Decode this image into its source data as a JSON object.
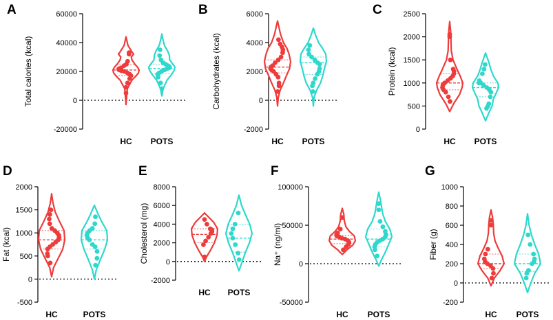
{
  "colors": {
    "hc": "#ee3b3b",
    "pots": "#2ed8cc",
    "axis": "#000000"
  },
  "chart_data": [
    {
      "type": "violin",
      "letter": "A",
      "ylabel": "Total calories (kcal)",
      "ylim": [
        -20000,
        60000
      ],
      "yticks": [
        -20000,
        0,
        20000,
        40000,
        60000
      ],
      "ytick_labels": [
        "-20000",
        "0",
        "20000",
        "40000",
        "60000"
      ],
      "categories": [
        "HC",
        "POTS"
      ],
      "series": [
        {
          "name": "HC",
          "median": 21000,
          "q1": 17000,
          "q3": 24500,
          "profile": [
            [
              -3000,
              0
            ],
            [
              2000,
              0.04
            ],
            [
              8000,
              0.1
            ],
            [
              14000,
              0.45
            ],
            [
              17000,
              0.78
            ],
            [
              19000,
              0.95
            ],
            [
              21000,
              1.0
            ],
            [
              23000,
              0.88
            ],
            [
              25000,
              0.68
            ],
            [
              28000,
              0.45
            ],
            [
              30000,
              0.4
            ],
            [
              32000,
              0.58
            ],
            [
              34000,
              0.42
            ],
            [
              38000,
              0.15
            ],
            [
              44000,
              0
            ]
          ],
          "points": [
            5000,
            9000,
            12000,
            15000,
            17000,
            18000,
            19000,
            20000,
            20500,
            21000,
            21500,
            22000,
            22500,
            24000,
            25000,
            27000,
            32000,
            33000
          ]
        },
        {
          "name": "POTS",
          "median": 22000,
          "q1": 18500,
          "q3": 24500,
          "profile": [
            [
              3000,
              0
            ],
            [
              8000,
              0.1
            ],
            [
              14000,
              0.4
            ],
            [
              18000,
              0.75
            ],
            [
              21000,
              0.95
            ],
            [
              23000,
              1.0
            ],
            [
              25000,
              0.85
            ],
            [
              28000,
              0.6
            ],
            [
              31000,
              0.58
            ],
            [
              34000,
              0.45
            ],
            [
              38000,
              0.2
            ],
            [
              43000,
              0.06
            ],
            [
              46000,
              0
            ]
          ],
          "points": [
            8000,
            12000,
            16000,
            18000,
            19000,
            20000,
            21000,
            22000,
            22500,
            23000,
            24000,
            25000,
            26000,
            28000,
            31000,
            35000
          ]
        }
      ]
    },
    {
      "type": "violin",
      "letter": "B",
      "ylabel": "Carbohydrates (kcal)",
      "ylim": [
        -2000,
        6000
      ],
      "yticks": [
        -2000,
        0,
        2000,
        4000,
        6000
      ],
      "ytick_labels": [
        "-2000",
        "0",
        "2000",
        "4000",
        "6000"
      ],
      "categories": [
        "HC",
        "POTS"
      ],
      "series": [
        {
          "name": "HC",
          "median": 2300,
          "q1": 1900,
          "q3": 2800,
          "profile": [
            [
              -400,
              0
            ],
            [
              200,
              0.06
            ],
            [
              700,
              0.2
            ],
            [
              1200,
              0.45
            ],
            [
              1700,
              0.68
            ],
            [
              2200,
              0.92
            ],
            [
              2700,
              1.0
            ],
            [
              3200,
              0.88
            ],
            [
              3600,
              0.72
            ],
            [
              4000,
              0.45
            ],
            [
              4600,
              0.22
            ],
            [
              5100,
              0.1
            ],
            [
              5500,
              0
            ]
          ],
          "points": [
            600,
            1000,
            1200,
            1600,
            1800,
            2000,
            2100,
            2200,
            2300,
            2400,
            2600,
            2800,
            3000,
            3300,
            3500,
            3700,
            3900,
            4200
          ]
        },
        {
          "name": "POTS",
          "median": 2600,
          "q1": 1800,
          "q3": 3000,
          "profile": [
            [
              -400,
              0
            ],
            [
              200,
              0.06
            ],
            [
              700,
              0.25
            ],
            [
              1200,
              0.55
            ],
            [
              1700,
              0.72
            ],
            [
              2200,
              0.85
            ],
            [
              2700,
              1.0
            ],
            [
              3200,
              0.95
            ],
            [
              3600,
              0.7
            ],
            [
              4000,
              0.4
            ],
            [
              4500,
              0.18
            ],
            [
              5000,
              0
            ]
          ],
          "points": [
            600,
            1000,
            1200,
            1500,
            1800,
            2000,
            2200,
            2500,
            2600,
            2800,
            3000,
            3200,
            3500,
            3800
          ]
        }
      ]
    },
    {
      "type": "violin",
      "letter": "C",
      "ylabel": "Protein (kcal)",
      "ylim": [
        0,
        2500
      ],
      "yticks": [
        0,
        500,
        1000,
        1500,
        2000,
        2500
      ],
      "ytick_labels": [
        "0",
        "500",
        "1000",
        "1500",
        "2000",
        "2500"
      ],
      "categories": [
        "HC",
        "POTS"
      ],
      "series": [
        {
          "name": "HC",
          "median": 1000,
          "q1": 850,
          "q3": 1200,
          "profile": [
            [
              380,
              0
            ],
            [
              550,
              0.3
            ],
            [
              750,
              0.75
            ],
            [
              900,
              0.95
            ],
            [
              1000,
              1.0
            ],
            [
              1150,
              0.8
            ],
            [
              1300,
              0.55
            ],
            [
              1500,
              0.25
            ],
            [
              1700,
              0.12
            ],
            [
              1900,
              0.1
            ],
            [
              2100,
              0.08
            ],
            [
              2330,
              0
            ]
          ],
          "points": [
            600,
            700,
            800,
            850,
            900,
            950,
            1000,
            1050,
            1100,
            1150,
            1200,
            1250,
            1300,
            1500,
            2000,
            2050
          ]
        },
        {
          "name": "POTS",
          "median": 900,
          "q1": 700,
          "q3": 1000,
          "profile": [
            [
              180,
              0
            ],
            [
              350,
              0.25
            ],
            [
              500,
              0.5
            ],
            [
              650,
              0.6
            ],
            [
              800,
              0.85
            ],
            [
              900,
              1.0
            ],
            [
              1000,
              0.95
            ],
            [
              1150,
              0.6
            ],
            [
              1300,
              0.4
            ],
            [
              1450,
              0.25
            ],
            [
              1650,
              0
            ]
          ],
          "points": [
            450,
            500,
            550,
            700,
            800,
            850,
            900,
            950,
            1000,
            1000,
            1050,
            1200,
            1300,
            1400
          ]
        }
      ]
    },
    {
      "type": "violin",
      "letter": "D",
      "ylabel": "Fat (kcal)",
      "ylim": [
        -500,
        2000
      ],
      "yticks": [
        -500,
        0,
        500,
        1000,
        1500,
        2000
      ],
      "ytick_labels": [
        "-500",
        "0",
        "500",
        "1000",
        "1500",
        "2000"
      ],
      "categories": [
        "HC",
        "POTS"
      ],
      "series": [
        {
          "name": "HC",
          "median": 850,
          "q1": 650,
          "q3": 1050,
          "profile": [
            [
              50,
              0
            ],
            [
              250,
              0.15
            ],
            [
              450,
              0.5
            ],
            [
              650,
              0.85
            ],
            [
              850,
              1.0
            ],
            [
              1050,
              0.95
            ],
            [
              1250,
              0.6
            ],
            [
              1450,
              0.28
            ],
            [
              1650,
              0.1
            ],
            [
              1850,
              0
            ]
          ],
          "points": [
            350,
            500,
            550,
            650,
            700,
            750,
            800,
            850,
            900,
            950,
            1000,
            1050,
            1100,
            1200,
            1300,
            1400,
            1500
          ]
        },
        {
          "name": "POTS",
          "median": 850,
          "q1": 650,
          "q3": 1050,
          "profile": [
            [
              0,
              0
            ],
            [
              200,
              0.15
            ],
            [
              450,
              0.5
            ],
            [
              650,
              0.8
            ],
            [
              850,
              1.0
            ],
            [
              1050,
              0.95
            ],
            [
              1250,
              0.55
            ],
            [
              1400,
              0.3
            ],
            [
              1600,
              0
            ]
          ],
          "points": [
            300,
            450,
            600,
            700,
            750,
            850,
            900,
            950,
            1000,
            1050,
            1100,
            1200,
            1350
          ]
        }
      ]
    },
    {
      "type": "violin",
      "letter": "E",
      "ylabel": "Cholesterol (mg)",
      "ylim": [
        -2000,
        8000
      ],
      "yticks": [
        -2000,
        0,
        2000,
        4000,
        6000,
        8000
      ],
      "ytick_labels": [
        "-2000",
        "0",
        "2000",
        "4000",
        "6000",
        "8000"
      ],
      "categories": [
        "HC",
        "POTS"
      ],
      "series": [
        {
          "name": "HC",
          "median": 2900,
          "q1": 2000,
          "q3": 3500,
          "profile": [
            [
              0,
              0
            ],
            [
              500,
              0.15
            ],
            [
              1200,
              0.45
            ],
            [
              2000,
              0.75
            ],
            [
              2800,
              0.95
            ],
            [
              3500,
              1.0
            ],
            [
              4200,
              0.7
            ],
            [
              4700,
              0.35
            ],
            [
              5200,
              0
            ]
          ],
          "points": [
            500,
            1800,
            2200,
            2600,
            3000,
            3200,
            3400,
            3500,
            4000,
            4500
          ]
        },
        {
          "name": "POTS",
          "median": 2500,
          "q1": 1000,
          "q3": 4000,
          "profile": [
            [
              -1000,
              0
            ],
            [
              0,
              0.25
            ],
            [
              1000,
              0.5
            ],
            [
              2000,
              0.8
            ],
            [
              3000,
              1.0
            ],
            [
              4000,
              0.82
            ],
            [
              5000,
              0.5
            ],
            [
              6000,
              0.2
            ],
            [
              7100,
              0
            ]
          ],
          "points": [
            200,
            900,
            1800,
            2500,
            3000,
            3500,
            4000,
            5200
          ]
        }
      ]
    },
    {
      "type": "violin",
      "letter": "F",
      "ylabel": "Na⁺ (ng/ml)",
      "ylim": [
        -50000,
        100000
      ],
      "yticks": [
        -50000,
        0,
        50000,
        100000
      ],
      "ytick_labels": [
        "-50000",
        "0",
        "50000",
        "100000"
      ],
      "categories": [
        "HC",
        "POTS"
      ],
      "series": [
        {
          "name": "HC",
          "median": 32000,
          "q1": 26000,
          "q3": 37000,
          "profile": [
            [
              12000,
              0
            ],
            [
              18000,
              0.35
            ],
            [
              24000,
              0.8
            ],
            [
              30000,
              1.0
            ],
            [
              36000,
              0.92
            ],
            [
              42000,
              0.55
            ],
            [
              48000,
              0.28
            ],
            [
              56000,
              0.15
            ],
            [
              64000,
              0.12
            ],
            [
              72000,
              0
            ]
          ],
          "points": [
            18000,
            22000,
            25000,
            28000,
            30000,
            32000,
            33000,
            35000,
            36000,
            38000,
            40000,
            45000,
            60000
          ]
        },
        {
          "name": "POTS",
          "median": 32000,
          "q1": 22000,
          "q3": 45000,
          "profile": [
            [
              -3000,
              0
            ],
            [
              5000,
              0.2
            ],
            [
              15000,
              0.5
            ],
            [
              25000,
              0.75
            ],
            [
              35000,
              1.0
            ],
            [
              45000,
              0.85
            ],
            [
              55000,
              0.5
            ],
            [
              65000,
              0.3
            ],
            [
              75000,
              0.2
            ],
            [
              85000,
              0.1
            ],
            [
              93000,
              0
            ]
          ],
          "points": [
            10000,
            18000,
            22000,
            25000,
            28000,
            30000,
            32000,
            35000,
            38000,
            42000,
            48000,
            55000,
            70000,
            78000
          ]
        }
      ]
    },
    {
      "type": "violin",
      "letter": "G",
      "ylabel": "Fiber (g)",
      "ylim": [
        -200,
        1000
      ],
      "yticks": [
        -200,
        0,
        200,
        400,
        600,
        800,
        1000
      ],
      "ytick_labels": [
        "-200",
        "0",
        "200",
        "400",
        "600",
        "800",
        "1000"
      ],
      "categories": [
        "HC",
        "POTS"
      ],
      "series": [
        {
          "name": "HC",
          "median": 200,
          "q1": 150,
          "q3": 300,
          "profile": [
            [
              -30,
              0
            ],
            [
              50,
              0.25
            ],
            [
              130,
              0.7
            ],
            [
              200,
              1.0
            ],
            [
              280,
              0.85
            ],
            [
              360,
              0.55
            ],
            [
              440,
              0.3
            ],
            [
              520,
              0.2
            ],
            [
              600,
              0.18
            ],
            [
              680,
              0.12
            ],
            [
              760,
              0
            ]
          ],
          "points": [
            50,
            100,
            150,
            180,
            200,
            220,
            250,
            300,
            350,
            600,
            650
          ]
        },
        {
          "name": "POTS",
          "median": 200,
          "q1": 120,
          "q3": 300,
          "profile": [
            [
              -100,
              0
            ],
            [
              0,
              0.25
            ],
            [
              100,
              0.55
            ],
            [
              200,
              1.0
            ],
            [
              300,
              0.85
            ],
            [
              400,
              0.55
            ],
            [
              500,
              0.3
            ],
            [
              600,
              0.12
            ],
            [
              720,
              0
            ]
          ],
          "points": [
            50,
            100,
            130,
            200,
            220,
            250,
            300,
            400,
            500
          ]
        }
      ]
    }
  ]
}
